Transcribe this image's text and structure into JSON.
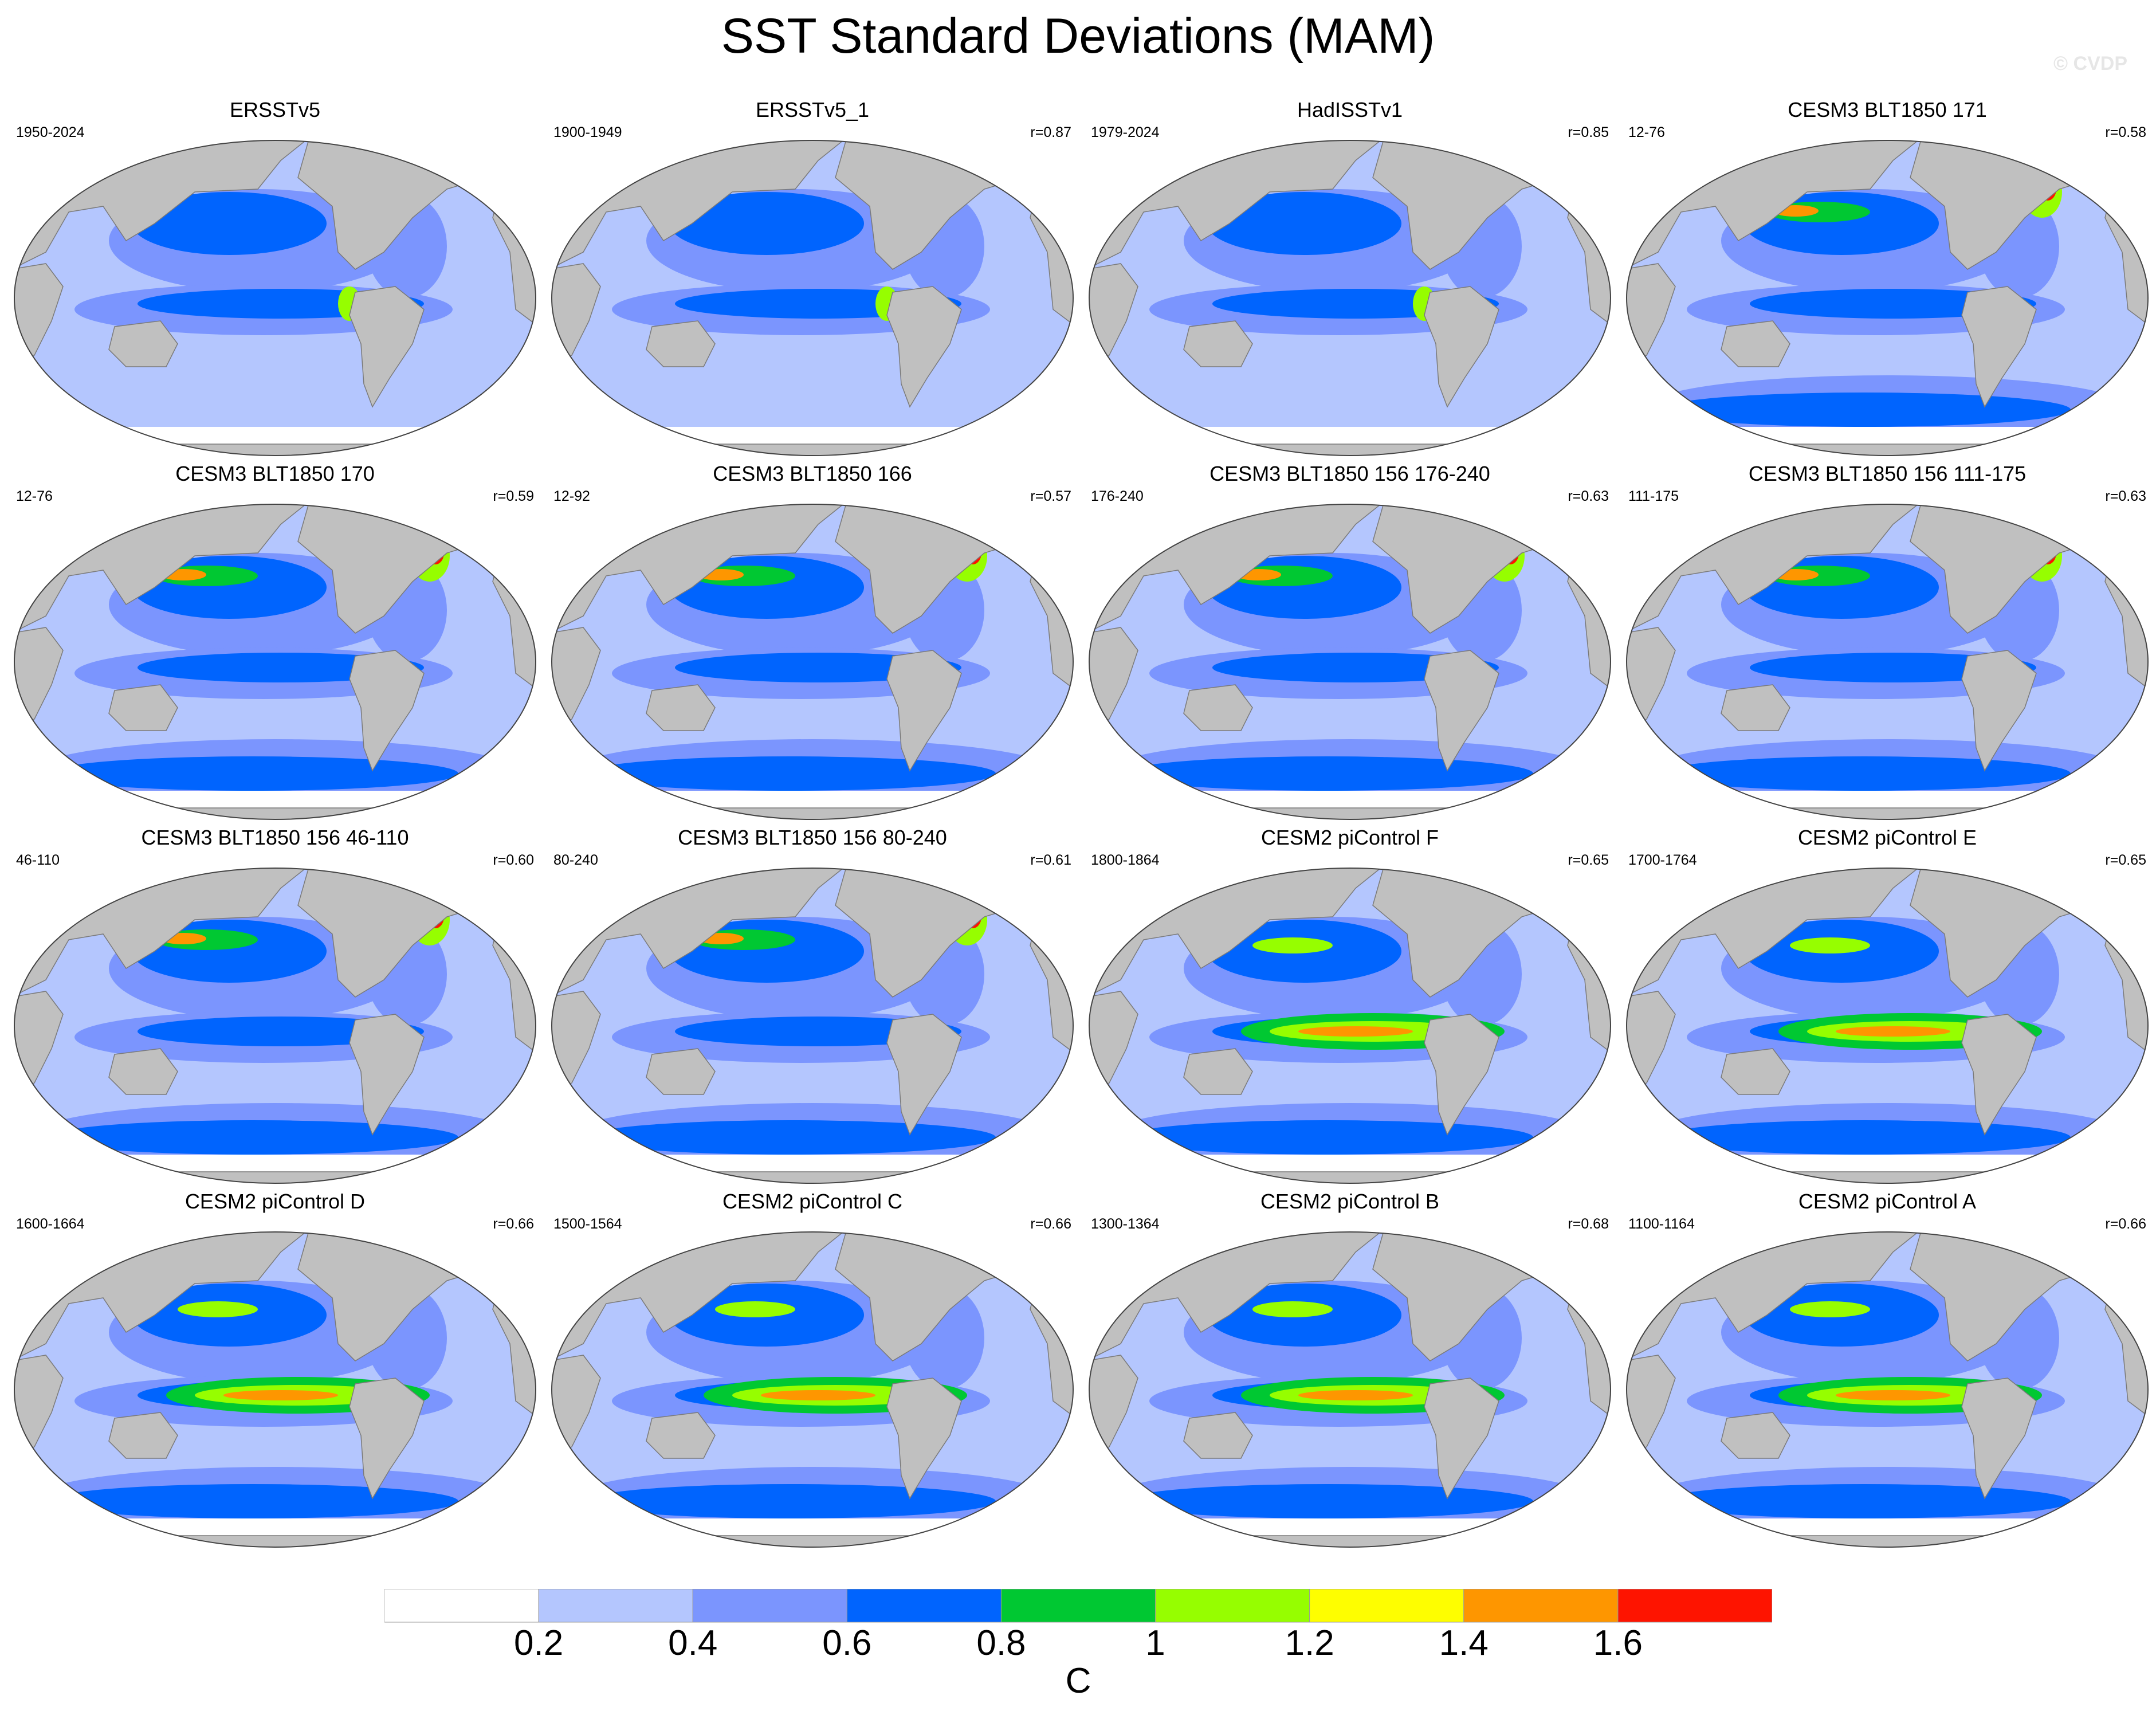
{
  "title": "SST Standard Deviations (MAM)",
  "watermark": "© CVDP",
  "chart_data": {
    "type": "heatmap",
    "title": "SST Standard Deviations (MAM)",
    "projection": "global map (Robinson-like ellipse), Pacific-centred",
    "land_color": "#c0c0c0",
    "panels": [
      {
        "title": "ERSSTv5",
        "years": "1950-2024",
        "corr": ""
      },
      {
        "title": "ERSSTv5_1",
        "years": "1900-1949",
        "corr": "r=0.87"
      },
      {
        "title": "HadISSTv1",
        "years": "1979-2024",
        "corr": "r=0.85"
      },
      {
        "title": "CESM3 BLT1850 171",
        "years": "12-76",
        "corr": "r=0.58"
      },
      {
        "title": "CESM3 BLT1850 170",
        "years": "12-76",
        "corr": "r=0.59"
      },
      {
        "title": "CESM3 BLT1850 166",
        "years": "12-92",
        "corr": "r=0.57"
      },
      {
        "title": "CESM3 BLT1850 156 176-240",
        "years": "176-240",
        "corr": "r=0.63"
      },
      {
        "title": "CESM3 BLT1850 156 111-175",
        "years": "111-175",
        "corr": "r=0.63"
      },
      {
        "title": "CESM3 BLT1850 156 46-110",
        "years": "46-110",
        "corr": "r=0.60"
      },
      {
        "title": "CESM3 BLT1850 156 80-240",
        "years": "80-240",
        "corr": "r=0.61"
      },
      {
        "title": "CESM2 piControl F",
        "years": "1800-1864",
        "corr": "r=0.65"
      },
      {
        "title": "CESM2 piControl E",
        "years": "1700-1764",
        "corr": "r=0.65"
      },
      {
        "title": "CESM2 piControl D",
        "years": "1600-1664",
        "corr": "r=0.66"
      },
      {
        "title": "CESM2 piControl C",
        "years": "1500-1564",
        "corr": "r=0.66"
      },
      {
        "title": "CESM2 piControl B",
        "years": "1300-1364",
        "corr": "r=0.68"
      },
      {
        "title": "CESM2 piControl A",
        "years": "1100-1164",
        "corr": "r=0.66"
      }
    ],
    "colorbar": {
      "levels": [
        "0.2",
        "0.4",
        "0.6",
        "0.8",
        "1",
        "1.2",
        "1.4",
        "1.6"
      ],
      "colors": [
        "#ffffff",
        "#b4c6fe",
        "#7b95fe",
        "#0064fe",
        "#00c832",
        "#96fe00",
        "#fefe00",
        "#fe9600",
        "#fe1400"
      ],
      "units": "C"
    }
  }
}
